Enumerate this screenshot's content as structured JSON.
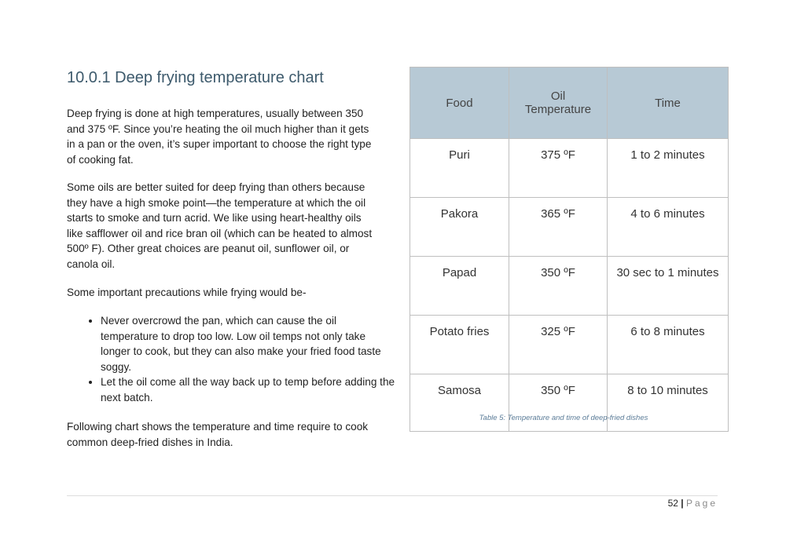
{
  "heading": "10.0.1 Deep frying temperature chart",
  "paragraphs": [
    "Deep frying is done at high temperatures, usually between 350 and 375 ºF. Since you’re heating the oil much higher than it gets in a pan or the oven, it’s super important to choose the right type of cooking fat.",
    "Some oils are better suited for deep frying than others because they have a high smoke point—the temperature at which the oil starts to smoke and turn acrid. We like using heart-healthy oils like safflower oil and rice bran oil (which can be heated to almost 500º F). Other great choices are peanut oil, sunflower oil, or canola oil.",
    "Some important precautions while frying would be-"
  ],
  "bullets": [
    "Never overcrowd the pan, which can cause the oil temperature to drop too low. Low oil temps not only take longer to cook, but they can also make your fried food taste soggy.",
    "Let the oil come all the way back up to temp before adding the next batch."
  ],
  "closing": "Following chart shows the temperature and time require to cook common deep-fried dishes in India.",
  "table": {
    "headers": [
      "Food",
      "Oil Temperature",
      "Time"
    ],
    "rows": [
      [
        "Puri",
        "375 ºF",
        "1 to 2 minutes"
      ],
      [
        "Pakora",
        "365 ºF",
        "4 to 6 minutes"
      ],
      [
        "Papad",
        "350 ºF",
        "30 sec to 1 minutes"
      ],
      [
        "Potato fries",
        "325 ºF",
        "6 to 8 minutes"
      ],
      [
        "Samosa",
        "350 ºF",
        "8 to 10 minutes"
      ]
    ],
    "caption": "Table 5: Temperature and time of deep-fried dishes"
  },
  "footer": {
    "page_number": "52",
    "separator": "|",
    "label": "Page"
  }
}
